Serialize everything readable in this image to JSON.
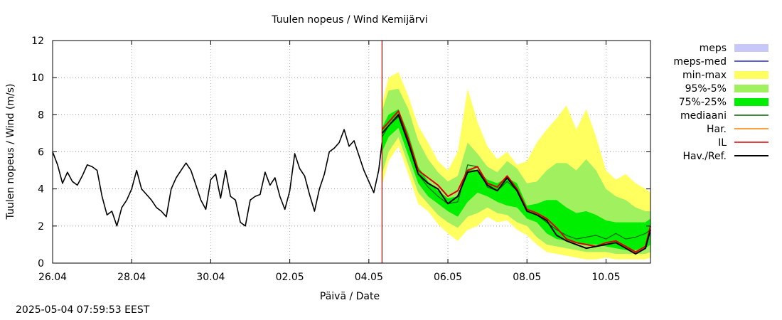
{
  "timestamp": "2025-05-04 07:59:53 EEST",
  "chart_data": {
    "type": "line",
    "title": "Tuulen nopeus / Wind  Kemijärvi",
    "xlabel": "Päivä / Date",
    "ylabel": "Tuulen nopeus / Wind (m/s)",
    "xlim": [
      "2025-04-26 00:00",
      "2025-05-11 03:00"
    ],
    "ylim": [
      0,
      12
    ],
    "y_ticks": [
      0,
      2,
      4,
      6,
      8,
      10,
      12
    ],
    "x_ticks": [
      {
        "date": "2025-04-26",
        "label": "26.04"
      },
      {
        "date": "2025-04-28",
        "label": "28.04"
      },
      {
        "date": "2025-04-30",
        "label": "30.04"
      },
      {
        "date": "2025-05-02",
        "label": "02.05"
      },
      {
        "date": "2025-05-04",
        "label": "04.05"
      },
      {
        "date": "2025-05-06",
        "label": "06.05"
      },
      {
        "date": "2025-05-08",
        "label": "08.05"
      },
      {
        "date": "2025-05-10",
        "label": "10.05"
      }
    ],
    "grid": true,
    "legend_position": "right",
    "forecast_start": "2025-05-04 08:00",
    "colors": {
      "meps": "#c8c8f8",
      "meps_med": "#2828c8",
      "minmax": "#ffff60",
      "p95_5": "#a0f060",
      "p75_25": "#00ee00",
      "mediaani": "#006400",
      "har": "#ff8000",
      "il": "#e00000",
      "hav": "#000000",
      "forecast_line": "#a00000",
      "grid": "#a0a0a0"
    },
    "legend": [
      {
        "label": "meps",
        "key": "meps",
        "kind": "box"
      },
      {
        "label": "meps-med",
        "key": "meps_med",
        "kind": "line"
      },
      {
        "label": "min-max",
        "key": "minmax",
        "kind": "box"
      },
      {
        "label": "95%-5%",
        "key": "p95_5",
        "kind": "box"
      },
      {
        "label": "75%-25%",
        "key": "p75_25",
        "kind": "box"
      },
      {
        "label": "mediaani",
        "key": "mediaani",
        "kind": "line"
      },
      {
        "label": "Har.",
        "key": "har",
        "kind": "line"
      },
      {
        "label": "IL",
        "key": "il",
        "kind": "line"
      },
      {
        "label": "Hav./Ref.",
        "key": "hav",
        "kind": "line"
      }
    ],
    "observed": {
      "name": "Hav./Ref.",
      "x": [
        "2025-04-26 00:00",
        "2025-04-26 03:00",
        "2025-04-26 06:00",
        "2025-04-26 09:00",
        "2025-04-26 12:00",
        "2025-04-26 15:00",
        "2025-04-26 18:00",
        "2025-04-26 21:00",
        "2025-04-27 00:00",
        "2025-04-27 03:00",
        "2025-04-27 06:00",
        "2025-04-27 09:00",
        "2025-04-27 12:00",
        "2025-04-27 15:00",
        "2025-04-27 18:00",
        "2025-04-27 21:00",
        "2025-04-28 00:00",
        "2025-04-28 03:00",
        "2025-04-28 06:00",
        "2025-04-28 09:00",
        "2025-04-28 12:00",
        "2025-04-28 15:00",
        "2025-04-28 18:00",
        "2025-04-28 21:00",
        "2025-04-29 00:00",
        "2025-04-29 03:00",
        "2025-04-29 06:00",
        "2025-04-29 09:00",
        "2025-04-29 12:00",
        "2025-04-29 15:00",
        "2025-04-29 18:00",
        "2025-04-29 21:00",
        "2025-04-30 00:00",
        "2025-04-30 03:00",
        "2025-04-30 06:00",
        "2025-04-30 09:00",
        "2025-04-30 12:00",
        "2025-04-30 15:00",
        "2025-04-30 18:00",
        "2025-04-30 21:00",
        "2025-05-01 00:00",
        "2025-05-01 03:00",
        "2025-05-01 06:00",
        "2025-05-01 09:00",
        "2025-05-01 12:00",
        "2025-05-01 15:00",
        "2025-05-01 18:00",
        "2025-05-01 21:00",
        "2025-05-02 00:00",
        "2025-05-02 03:00",
        "2025-05-02 06:00",
        "2025-05-02 09:00",
        "2025-05-02 12:00",
        "2025-05-02 15:00",
        "2025-05-02 18:00",
        "2025-05-02 21:00",
        "2025-05-03 00:00",
        "2025-05-03 03:00",
        "2025-05-03 06:00",
        "2025-05-03 09:00",
        "2025-05-03 12:00",
        "2025-05-03 15:00",
        "2025-05-03 18:00",
        "2025-05-03 21:00",
        "2025-05-04 00:00",
        "2025-05-04 03:00",
        "2025-05-04 06:00",
        "2025-05-04 08:00"
      ],
      "values": [
        6.0,
        5.3,
        4.3,
        4.9,
        4.4,
        4.2,
        4.7,
        5.3,
        5.2,
        5.0,
        3.6,
        2.6,
        2.8,
        2.0,
        3.0,
        3.4,
        4.0,
        5.0,
        4.0,
        3.7,
        3.4,
        3.0,
        2.8,
        2.5,
        4.0,
        4.6,
        5.0,
        5.4,
        5.0,
        4.2,
        3.4,
        2.9,
        4.5,
        4.8,
        3.5,
        5.0,
        3.6,
        3.4,
        2.2,
        2.0,
        3.4,
        3.6,
        3.7,
        4.9,
        4.2,
        4.6,
        3.6,
        2.9,
        3.9,
        5.9,
        5.1,
        4.7,
        3.7,
        2.8,
        4.0,
        4.8,
        6.0,
        6.2,
        6.5,
        7.2,
        6.3,
        6.6,
        5.8,
        5.0,
        4.4,
        3.8,
        5.0,
        6.5
      ]
    },
    "forecast": {
      "x": [
        "2025-05-04 08:00",
        "2025-05-04 12:00",
        "2025-05-04 18:00",
        "2025-05-05 00:00",
        "2025-05-05 06:00",
        "2025-05-05 12:00",
        "2025-05-05 18:00",
        "2025-05-06 00:00",
        "2025-05-06 06:00",
        "2025-05-06 12:00",
        "2025-05-06 18:00",
        "2025-05-07 00:00",
        "2025-05-07 06:00",
        "2025-05-07 12:00",
        "2025-05-07 18:00",
        "2025-05-08 00:00",
        "2025-05-08 06:00",
        "2025-05-08 12:00",
        "2025-05-08 18:00",
        "2025-05-09 00:00",
        "2025-05-09 06:00",
        "2025-05-09 12:00",
        "2025-05-09 18:00",
        "2025-05-10 00:00",
        "2025-05-10 06:00",
        "2025-05-10 12:00",
        "2025-05-10 18:00",
        "2025-05-11 00:00",
        "2025-05-11 03:00"
      ],
      "min_max": {
        "low": [
          4.2,
          5.5,
          6.3,
          4.8,
          3.2,
          2.8,
          2.1,
          1.6,
          1.2,
          1.8,
          2.0,
          2.5,
          2.2,
          2.3,
          1.8,
          1.5,
          1.0,
          0.6,
          0.5,
          0.4,
          0.3,
          0.2,
          0.2,
          0.3,
          0.2,
          0.2,
          0.2,
          0.2,
          0.3
        ],
        "high": [
          8.6,
          10.0,
          10.3,
          9.0,
          7.4,
          6.5,
          5.5,
          5.0,
          6.0,
          9.4,
          7.6,
          6.3,
          5.6,
          6.0,
          5.3,
          5.5,
          6.5,
          7.2,
          7.8,
          8.5,
          7.2,
          8.3,
          6.8,
          5.0,
          4.5,
          4.8,
          4.3,
          4.0,
          3.8
        ]
      },
      "p95_5": {
        "low": [
          4.8,
          6.0,
          6.8,
          5.3,
          3.8,
          3.2,
          2.6,
          2.2,
          1.9,
          2.5,
          2.7,
          3.0,
          2.7,
          2.6,
          2.2,
          2.0,
          1.4,
          1.0,
          0.9,
          0.8,
          0.7,
          0.6,
          0.6,
          0.6,
          0.5,
          0.5,
          0.5,
          0.5,
          0.6
        ],
        "high": [
          8.2,
          9.3,
          9.4,
          8.3,
          6.6,
          5.6,
          4.9,
          4.4,
          4.7,
          6.5,
          5.9,
          5.2,
          4.9,
          5.5,
          5.1,
          4.3,
          4.4,
          5.0,
          5.4,
          5.4,
          5.0,
          5.6,
          5.0,
          4.0,
          3.6,
          3.4,
          3.0,
          2.8,
          2.8
        ]
      },
      "p75_25": {
        "low": [
          6.0,
          6.8,
          7.3,
          5.8,
          4.3,
          3.6,
          3.2,
          2.8,
          2.5,
          3.3,
          3.8,
          3.6,
          3.3,
          3.1,
          3.0,
          2.4,
          2.2,
          1.6,
          1.3,
          1.2,
          1.1,
          1.0,
          1.0,
          0.9,
          0.8,
          0.7,
          0.7,
          0.8,
          1.0
        ],
        "high": [
          7.3,
          8.0,
          8.3,
          7.0,
          5.2,
          4.4,
          3.9,
          3.5,
          3.6,
          5.1,
          5.0,
          4.5,
          4.3,
          4.6,
          4.3,
          3.1,
          3.2,
          3.4,
          3.4,
          3.0,
          2.7,
          2.8,
          2.6,
          2.3,
          2.2,
          2.2,
          2.2,
          2.2,
          2.4
        ]
      },
      "mediaani": [
        6.8,
        7.4,
        7.9,
        6.4,
        4.8,
        4.1,
        3.6,
        3.2,
        3.3,
        5.3,
        5.2,
        4.1,
        3.9,
        4.4,
        3.9,
        2.8,
        2.6,
        2.2,
        1.8,
        1.5,
        1.3,
        1.4,
        1.5,
        1.3,
        1.6,
        1.3,
        1.4,
        1.6,
        1.8
      ],
      "il": [
        7.2,
        7.6,
        8.2,
        6.7,
        5.0,
        4.6,
        4.2,
        3.6,
        3.9,
        5.0,
        5.2,
        4.3,
        4.1,
        4.7,
        4.0,
        2.9,
        2.7,
        2.4,
        1.9,
        1.3,
        1.1,
        1.0,
        0.9,
        1.1,
        1.2,
        0.9,
        0.6,
        0.9,
        2.0
      ],
      "hav": [
        7.0,
        7.4,
        8.0,
        6.5,
        4.8,
        4.3,
        4.0,
        3.2,
        3.6,
        4.9,
        5.0,
        4.2,
        3.9,
        4.6,
        3.9,
        2.8,
        2.6,
        2.3,
        1.5,
        1.2,
        1.0,
        0.8,
        0.9,
        1.0,
        1.1,
        0.8,
        0.5,
        0.8,
        1.8
      ]
    }
  }
}
